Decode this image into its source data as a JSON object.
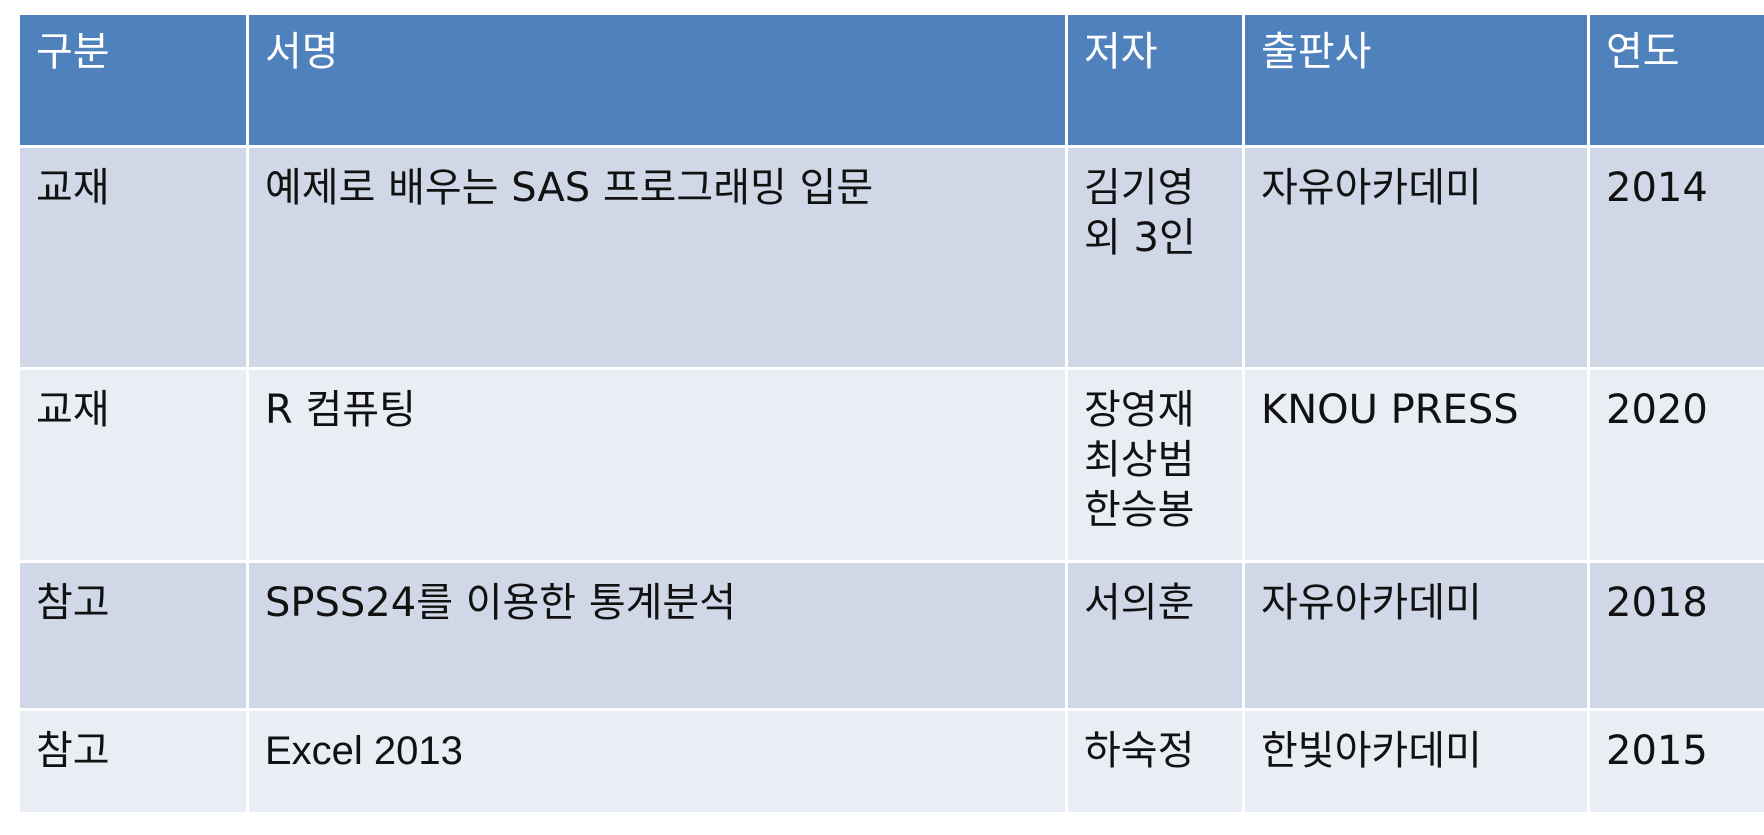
{
  "table": {
    "headers": [
      "구분",
      "서명",
      "저자",
      "출판사",
      "연도"
    ],
    "rows": [
      {
        "category": "교재",
        "title": "예제로 배우는 SAS 프로그래밍 입문",
        "author": [
          "김기영",
          "외 3인"
        ],
        "publisher": "자유아카데미",
        "year": "2014"
      },
      {
        "category": "교재",
        "title": "R 컴퓨팅",
        "author": [
          "장영재",
          "최상범",
          "한승봉"
        ],
        "publisher": "KNOU PRESS",
        "year": "2020"
      },
      {
        "category": "참고",
        "title": "SPSS24를 이용한 통계분석",
        "author": [
          "서의훈"
        ],
        "publisher": "자유아카데미",
        "year": "2018"
      },
      {
        "category": "참고",
        "title": "Excel 2013",
        "author": [
          "하숙정"
        ],
        "publisher": "한빛아카데미",
        "year": "2015"
      }
    ]
  },
  "colors": {
    "header_bg": "#4f81bd",
    "row_band_dark": "#d0d8e8",
    "row_band_light": "#e9edf4"
  }
}
